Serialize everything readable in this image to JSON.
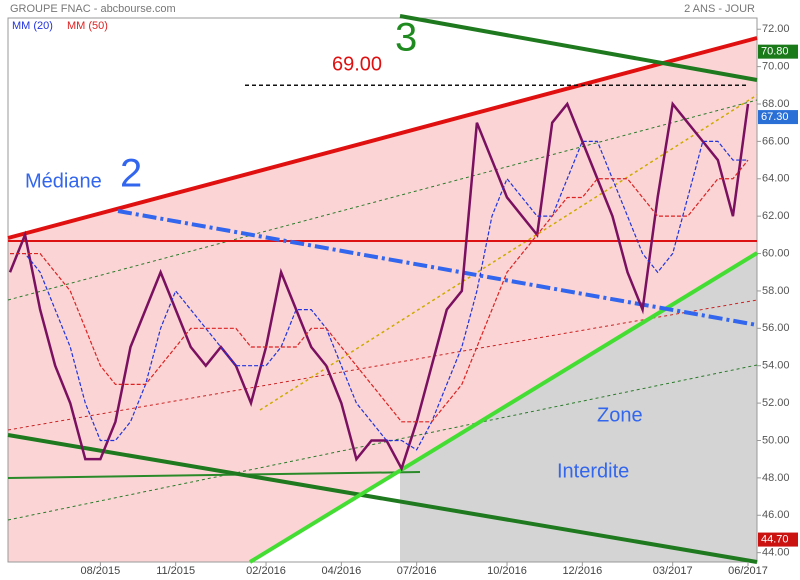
{
  "chart_data": {
    "type": "line",
    "title": "GROUPE FNAC - abcbourse.com",
    "subtitle": "2 ANS - JOUR",
    "categories": [
      null,
      null,
      null,
      null,
      null,
      null,
      "08/2015",
      null,
      null,
      null,
      null,
      "11/2015",
      null,
      null,
      null,
      null,
      null,
      "02/2016",
      null,
      null,
      null,
      null,
      "04/2016",
      null,
      null,
      null,
      null,
      "07/2016",
      null,
      null,
      null,
      null,
      null,
      "10/2016",
      null,
      null,
      null,
      null,
      "12/2016",
      null,
      null,
      null,
      null,
      null,
      "03/2017",
      null,
      null,
      null,
      null,
      "06/2017"
    ],
    "series": [
      {
        "color": "#7b1060",
        "values": [
          59,
          61,
          57,
          54,
          52,
          49,
          49,
          51,
          55,
          57,
          59,
          57,
          55,
          54,
          55,
          54,
          52,
          55,
          59,
          57,
          55,
          54,
          52,
          49,
          50,
          50,
          48.5,
          51,
          54,
          57,
          58,
          67,
          65,
          63,
          62,
          61,
          67,
          68,
          66,
          64,
          62,
          59,
          57,
          63,
          68,
          67,
          66,
          65,
          62,
          68
        ]
      },
      {
        "name": "MM (20)",
        "color": "#2233dd",
        "values": [
          60,
          60,
          59,
          57,
          55,
          52,
          50,
          50,
          51,
          53,
          56,
          58,
          57,
          56,
          55,
          54,
          54,
          54,
          55,
          57,
          57,
          56,
          54,
          52,
          51,
          50,
          50,
          49.5,
          51,
          53,
          55,
          58,
          62,
          64,
          63,
          62,
          62,
          64,
          66,
          66,
          64,
          62,
          60,
          59,
          60,
          63,
          66,
          66,
          65,
          65
        ]
      },
      {
        "name": "MM (50)",
        "color": "#dd2222",
        "values": [
          60,
          60,
          60,
          59,
          58,
          56,
          54,
          53,
          53,
          53,
          54,
          55,
          56,
          56,
          56,
          56,
          55,
          55,
          55,
          55,
          56,
          56,
          55,
          54,
          53,
          52,
          51,
          51,
          51,
          52,
          53,
          55,
          57,
          59,
          60,
          61,
          62,
          63,
          63,
          64,
          64,
          64,
          63,
          62,
          62,
          62,
          63,
          64,
          64,
          65
        ]
      }
    ],
    "ylim": [
      43.5,
      72.6
    ],
    "yticks": [
      {
        "value": 44,
        "label": "44.00"
      },
      {
        "value": 46,
        "label": "46.00"
      },
      {
        "value": 48,
        "label": "48.00"
      },
      {
        "value": 50,
        "label": "50.00"
      },
      {
        "value": 52,
        "label": "52.00"
      },
      {
        "value": 54,
        "label": "54.00"
      },
      {
        "value": 56,
        "label": "56.00"
      },
      {
        "value": 58,
        "label": "58.00"
      },
      {
        "value": 60,
        "label": "60.00"
      },
      {
        "value": 62,
        "label": "62.00"
      },
      {
        "value": 64,
        "label": "64.00"
      },
      {
        "value": 66,
        "label": "66.00"
      },
      {
        "value": 68,
        "label": "68.00"
      },
      {
        "value": 70,
        "label": "70.00"
      },
      {
        "value": 72,
        "label": "72.00"
      }
    ],
    "price_markers": [
      {
        "value": 70.8,
        "label": "70.80",
        "color": "#1a7a1a"
      },
      {
        "value": 67.3,
        "label": "67.30",
        "color": "#2a6fd6"
      },
      {
        "value": 44.7,
        "label": "44.70",
        "color": "#cc1111"
      }
    ],
    "resistance": {
      "value": 69,
      "label": "69.00"
    },
    "annotations": [
      "3",
      "Médiane",
      "2",
      "Zone",
      "Interdite"
    ]
  }
}
